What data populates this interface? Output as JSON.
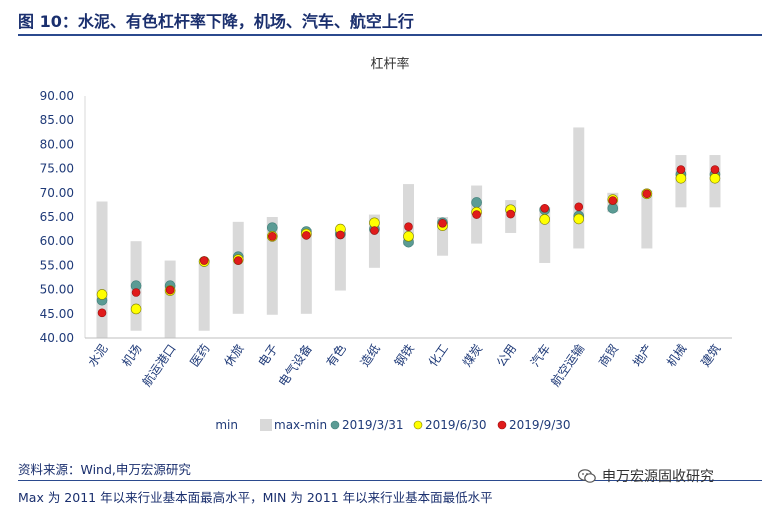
{
  "figure": {
    "title": "图 10：水泥、有色杠杆率下降，机场、汽车、航空上行",
    "source": "资料来源：Wind,申万宏源研究",
    "footnote": "Max 为 2011 年以来行业基本面最高水平，MIN 为 2011 年以来行业基本面最低水平",
    "brand": "申万宏源固收研究",
    "brand_icon": "wechat-icon"
  },
  "chart_data": {
    "type": "bar",
    "title": "杠杆率",
    "xlabel": "",
    "ylabel": "",
    "ylim": [
      40,
      90
    ],
    "yticks": [
      "40.00",
      "45.00",
      "50.00",
      "55.00",
      "60.00",
      "65.00",
      "70.00",
      "75.00",
      "80.00",
      "85.00",
      "90.00"
    ],
    "grid": false,
    "legend_position": "bottom",
    "categories": [
      "水泥",
      "机场",
      "航运港口",
      "医药",
      "休旅",
      "电子",
      "电气设备",
      "有色",
      "造纸",
      "钢铁",
      "化工",
      "煤炭",
      "公用",
      "汽车",
      "航空运输",
      "商贸",
      "地产",
      "机械",
      "建筑"
    ],
    "min": [
      40.0,
      41.5,
      40.0,
      41.5,
      45.0,
      44.8,
      45.0,
      49.8,
      54.5,
      59.2,
      57.0,
      59.5,
      61.7,
      55.5,
      58.5,
      66.0,
      58.5,
      67.0,
      67.0
    ],
    "max": [
      68.2,
      60.0,
      56.0,
      56.2,
      64.0,
      65.0,
      62.5,
      62.5,
      65.5,
      71.8,
      65.0,
      71.5,
      68.5,
      67.0,
      83.5,
      70.0,
      70.5,
      77.8,
      77.8
    ],
    "series": [
      {
        "name": "min",
        "color": "#ffffff"
      },
      {
        "name": "max-min",
        "color": "#d9d9d9"
      },
      {
        "name": "2019/3/31",
        "color": "#5b9b94",
        "values": [
          47.8,
          50.8,
          50.8,
          55.8,
          56.8,
          62.8,
          62.0,
          61.5,
          62.5,
          59.8,
          63.8,
          68.0,
          66.5,
          66.5,
          65.2,
          66.8,
          69.8,
          73.8,
          73.8
        ]
      },
      {
        "name": "2019/6/30",
        "color": "#ffff00",
        "values": [
          49.0,
          46.0,
          49.8,
          55.8,
          56.2,
          61.0,
          61.5,
          62.5,
          63.8,
          61.0,
          63.2,
          66.0,
          66.5,
          64.5,
          64.6,
          68.6,
          69.8,
          73.0,
          73.0
        ]
      },
      {
        "name": "2019/9/30",
        "color": "#e01b1b",
        "values": [
          45.2,
          49.4,
          49.9,
          56.0,
          56.0,
          61.0,
          61.2,
          61.3,
          62.2,
          63.0,
          63.7,
          65.5,
          65.6,
          66.8,
          67.1,
          68.4,
          69.8,
          74.8,
          74.8
        ]
      }
    ]
  }
}
